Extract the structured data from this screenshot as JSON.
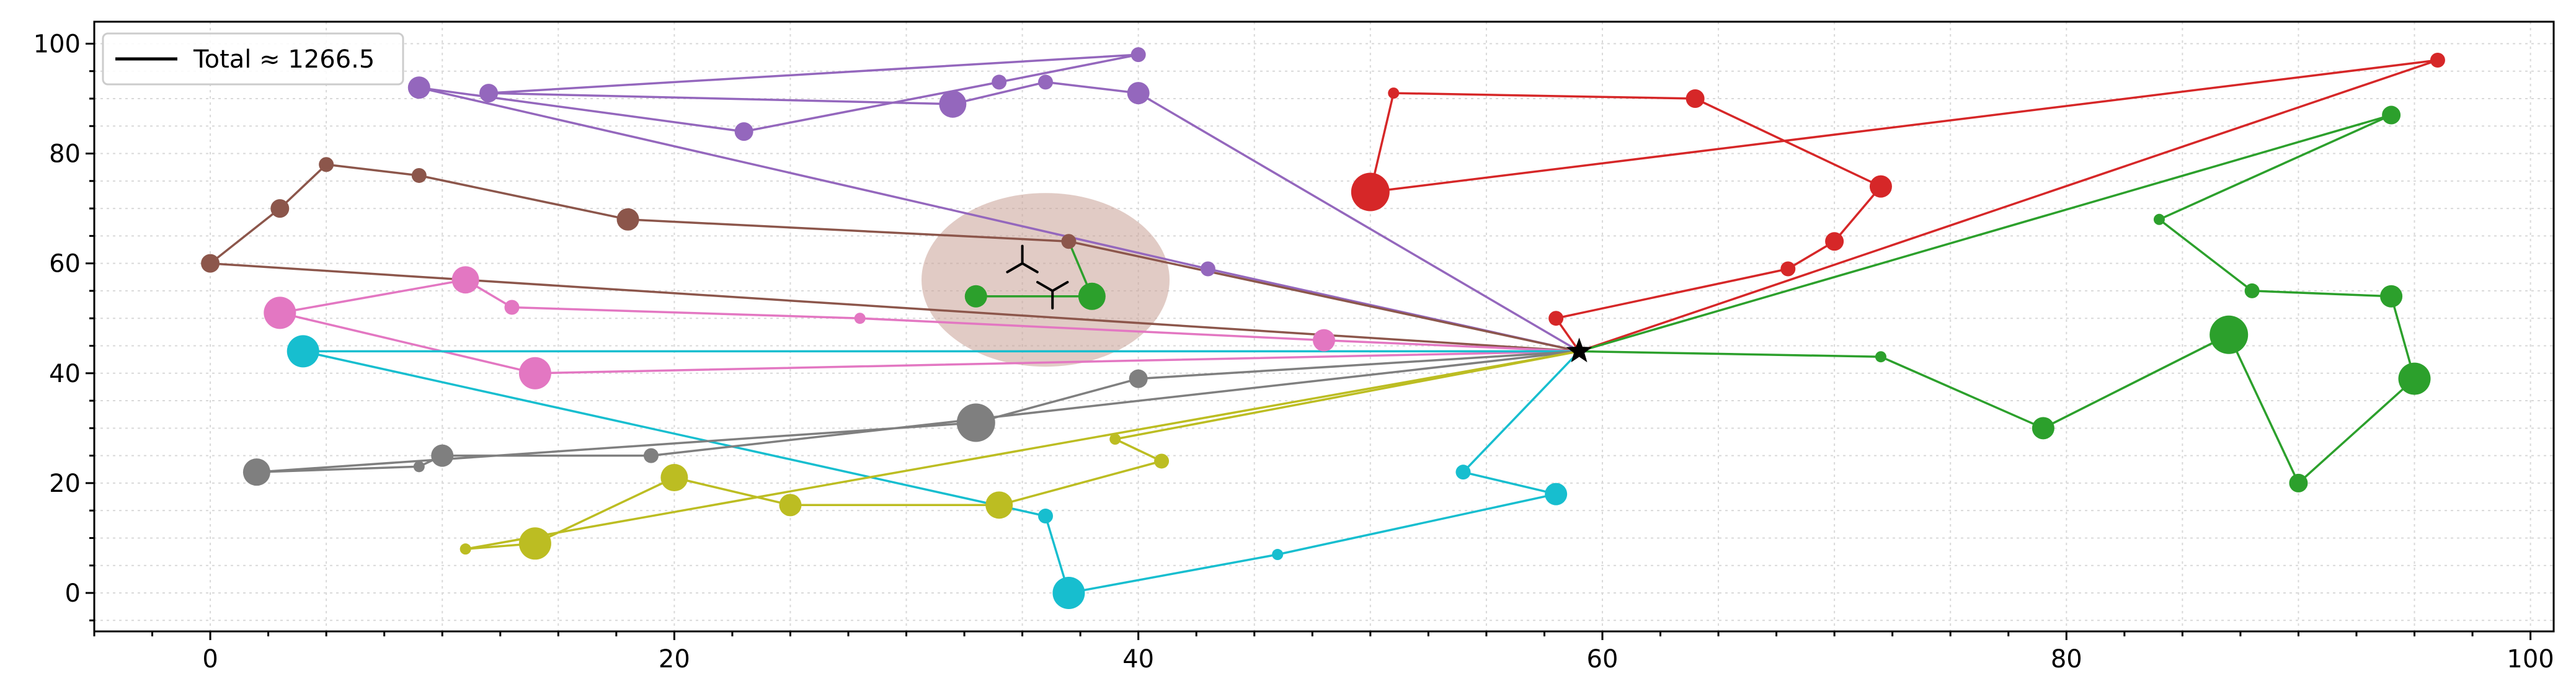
{
  "chart_data": {
    "type": "line",
    "title": "",
    "xlabel": "",
    "ylabel": "",
    "xlim": [
      -5,
      101
    ],
    "ylim": [
      -7,
      104
    ],
    "x_ticks": [
      0,
      20,
      40,
      60,
      80,
      100
    ],
    "y_ticks": [
      0,
      20,
      40,
      60,
      80,
      100
    ],
    "x_tick_labels": [
      "0",
      "20",
      "40",
      "60",
      "80",
      "100"
    ],
    "y_tick_labels": [
      "0",
      "20",
      "40",
      "60",
      "80",
      "100"
    ],
    "grid": true,
    "legend_position": "top-left",
    "legend": {
      "label": "Total ≈ 1266.5",
      "color": "#000000"
    },
    "depot": {
      "x": 59,
      "y": 44
    },
    "highlight_region": {
      "center_x": 36,
      "center_y": 57,
      "color": "#c9a195"
    },
    "highlight_markers": [
      {
        "x": 35,
        "y": 60
      },
      {
        "x": 36.3,
        "y": 55
      }
    ],
    "series": [
      {
        "color": "#9467bd",
        "points": [
          {
            "x": 59,
            "y": 44
          },
          {
            "x": 43,
            "y": 59,
            "s": 1
          },
          {
            "x": 9,
            "y": 92,
            "s": 3
          },
          {
            "x": 23,
            "y": 84,
            "s": 2
          },
          {
            "x": 34,
            "y": 93,
            "s": 1
          },
          {
            "x": 40,
            "y": 98,
            "s": 1
          },
          {
            "x": 12,
            "y": 91,
            "s": 2
          },
          {
            "x": 32,
            "y": 89,
            "s": 4
          },
          {
            "x": 36,
            "y": 93,
            "s": 1
          },
          {
            "x": 40,
            "y": 91,
            "s": 3
          },
          {
            "x": 59,
            "y": 44
          }
        ]
      },
      {
        "color": "#8c564b",
        "points": [
          {
            "x": 59,
            "y": 44
          },
          {
            "x": 37,
            "y": 64,
            "s": 1
          },
          {
            "x": 18,
            "y": 68,
            "s": 3
          },
          {
            "x": 9,
            "y": 76,
            "s": 1
          },
          {
            "x": 5,
            "y": 78,
            "s": 1
          },
          {
            "x": 3,
            "y": 70,
            "s": 2
          },
          {
            "x": 0,
            "y": 60,
            "s": 2
          },
          {
            "x": 59,
            "y": 44
          }
        ]
      },
      {
        "color": "#2ca02c",
        "points": [
          {
            "x": 36,
            "y": 54
          },
          {
            "x": 33,
            "y": 54,
            "s": 3
          },
          {
            "x": 38,
            "y": 54,
            "s": 4
          },
          {
            "x": 37,
            "y": 64
          }
        ]
      },
      {
        "color": "#d62728",
        "points": [
          {
            "x": 59,
            "y": 44
          },
          {
            "x": 58,
            "y": 50,
            "s": 1
          },
          {
            "x": 68,
            "y": 59,
            "s": 1
          },
          {
            "x": 70,
            "y": 64,
            "s": 2
          },
          {
            "x": 72,
            "y": 74,
            "s": 3
          },
          {
            "x": 64,
            "y": 90,
            "s": 2
          },
          {
            "x": 51,
            "y": 91,
            "s": 0
          },
          {
            "x": 50,
            "y": 73,
            "s": 6
          },
          {
            "x": 96,
            "y": 97,
            "s": 1
          },
          {
            "x": 59,
            "y": 44
          }
        ]
      },
      {
        "color": "#e377c2",
        "points": [
          {
            "x": 59,
            "y": 44
          },
          {
            "x": 48,
            "y": 46,
            "s": 3
          },
          {
            "x": 28,
            "y": 50,
            "s": 0
          },
          {
            "x": 13,
            "y": 52,
            "s": 1
          },
          {
            "x": 11,
            "y": 57,
            "s": 4
          },
          {
            "x": 3,
            "y": 51,
            "s": 5
          },
          {
            "x": 14,
            "y": 40,
            "s": 5
          },
          {
            "x": 59,
            "y": 44
          }
        ]
      },
      {
        "color": "#17becf",
        "points": [
          {
            "x": 59,
            "y": 44
          },
          {
            "x": 4,
            "y": 44,
            "s": 5
          },
          {
            "x": 36,
            "y": 14,
            "s": 1
          },
          {
            "x": 37,
            "y": 0,
            "s": 5
          },
          {
            "x": 46,
            "y": 7,
            "s": 0
          },
          {
            "x": 58,
            "y": 18,
            "s": 3
          },
          {
            "x": 54,
            "y": 22,
            "s": 1
          },
          {
            "x": 59,
            "y": 44
          }
        ]
      },
      {
        "color": "#7f7f7f",
        "points": [
          {
            "x": 59,
            "y": 44
          },
          {
            "x": 40,
            "y": 39,
            "s": 2
          },
          {
            "x": 33,
            "y": 31,
            "s": 6
          },
          {
            "x": 2,
            "y": 22,
            "s": 4
          },
          {
            "x": 9,
            "y": 23,
            "s": 0
          },
          {
            "x": 10,
            "y": 25,
            "s": 3
          },
          {
            "x": 19,
            "y": 25,
            "s": 1
          },
          {
            "x": 59,
            "y": 44
          }
        ]
      },
      {
        "color": "#bcbd22",
        "points": [
          {
            "x": 59,
            "y": 44
          },
          {
            "x": 39,
            "y": 28,
            "s": 0
          },
          {
            "x": 41,
            "y": 24,
            "s": 1
          },
          {
            "x": 34,
            "y": 16,
            "s": 4
          },
          {
            "x": 25,
            "y": 16,
            "s": 3
          },
          {
            "x": 20,
            "y": 21,
            "s": 4
          },
          {
            "x": 14,
            "y": 9,
            "s": 5
          },
          {
            "x": 11,
            "y": 8,
            "s": 0
          },
          {
            "x": 59,
            "y": 44
          }
        ]
      },
      {
        "color": "#2ca02c",
        "points": [
          {
            "x": 59,
            "y": 44
          },
          {
            "x": 72,
            "y": 43,
            "s": 0
          },
          {
            "x": 79,
            "y": 30,
            "s": 3
          },
          {
            "x": 87,
            "y": 47,
            "s": 6
          },
          {
            "x": 90,
            "y": 20,
            "s": 2
          },
          {
            "x": 95,
            "y": 39,
            "s": 5
          },
          {
            "x": 94,
            "y": 54,
            "s": 3
          },
          {
            "x": 88,
            "y": 55,
            "s": 1
          },
          {
            "x": 84,
            "y": 68,
            "s": 0
          },
          {
            "x": 94,
            "y": 87,
            "s": 2
          },
          {
            "x": 59,
            "y": 44
          }
        ]
      }
    ]
  }
}
